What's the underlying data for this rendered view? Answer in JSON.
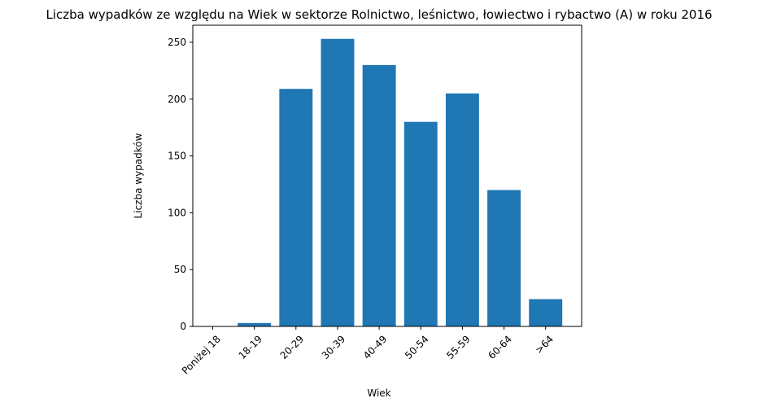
{
  "chart_data": {
    "type": "bar",
    "title": "Liczba wypadków ze względu na Wiek w sektorze Rolnictwo, leśnictwo, łowiectwo i rybactwo (A) w roku 2016",
    "xlabel": "Wiek",
    "ylabel": "Liczba wypadków",
    "categories": [
      "Poniżej 18",
      "18-19",
      "20-29",
      "30-39",
      "40-49",
      "50-54",
      "55-59",
      "60-64",
      ">64"
    ],
    "values": [
      0,
      3,
      209,
      253,
      230,
      180,
      205,
      120,
      24
    ],
    "ylim": [
      0,
      265
    ],
    "yticks": [
      0,
      50,
      100,
      150,
      200,
      250
    ],
    "bar_color": "#1f77b4",
    "grid": false
  }
}
